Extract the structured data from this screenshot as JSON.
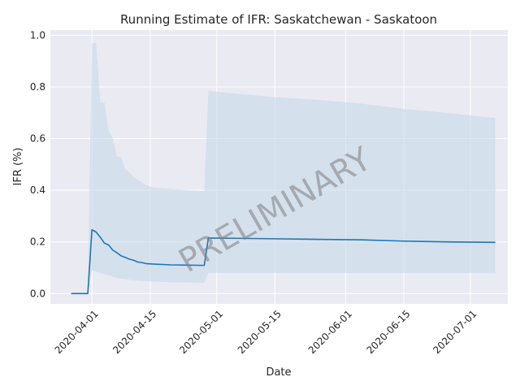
{
  "chart_data": {
    "type": "line",
    "title": "Running Estimate of IFR: Saskatchewan - Saskatoon",
    "xlabel": "Date",
    "ylabel": "IFR (%)",
    "watermark": "PRELIMINARY",
    "grid": true,
    "legend": "none",
    "xlim": [
      "2020-03-22",
      "2020-07-10"
    ],
    "ylim": [
      -0.04,
      1.02
    ],
    "x_ticks": [
      "2020-04-01",
      "2020-04-15",
      "2020-05-01",
      "2020-05-15",
      "2020-06-01",
      "2020-06-15",
      "2020-07-01"
    ],
    "y_ticks": [
      0.0,
      0.2,
      0.4,
      0.6,
      0.8,
      1.0
    ],
    "y_tick_labels": [
      "0.0",
      "0.2",
      "0.4",
      "0.6",
      "0.8",
      "1.0"
    ],
    "colors": {
      "line": "#1f77b4",
      "band": "#c6d9ea",
      "plot_bg": "#eaeaf2",
      "grid": "#ffffff"
    },
    "series": [
      {
        "points": [
          [
            "2020-03-27",
            0.0
          ],
          [
            "2020-03-28",
            0.0
          ],
          [
            "2020-03-29",
            0.0
          ],
          [
            "2020-03-30",
            0.0
          ],
          [
            "2020-03-31",
            0.0
          ],
          [
            "2020-04-01",
            0.247
          ],
          [
            "2020-04-02",
            0.238
          ],
          [
            "2020-04-03",
            0.218
          ],
          [
            "2020-04-04",
            0.195
          ],
          [
            "2020-04-05",
            0.188
          ],
          [
            "2020-04-06",
            0.168
          ],
          [
            "2020-04-07",
            0.158
          ],
          [
            "2020-04-08",
            0.146
          ],
          [
            "2020-04-09",
            0.14
          ],
          [
            "2020-04-10",
            0.133
          ],
          [
            "2020-04-11",
            0.129
          ],
          [
            "2020-04-12",
            0.122
          ],
          [
            "2020-04-13",
            0.12
          ],
          [
            "2020-04-14",
            0.116
          ],
          [
            "2020-04-16",
            0.114
          ],
          [
            "2020-04-20",
            0.111
          ],
          [
            "2020-04-24",
            0.11
          ],
          [
            "2020-04-28",
            0.109
          ],
          [
            "2020-04-29",
            0.215
          ],
          [
            "2020-05-05",
            0.214
          ],
          [
            "2020-05-15",
            0.212
          ],
          [
            "2020-05-25",
            0.21
          ],
          [
            "2020-06-05",
            0.208
          ],
          [
            "2020-06-15",
            0.203
          ],
          [
            "2020-06-25",
            0.2
          ],
          [
            "2020-07-07",
            0.198
          ]
        ]
      }
    ],
    "band": [
      [
        "2020-03-31",
        0.0,
        0.0
      ],
      [
        "2020-04-01",
        0.09,
        0.97
      ],
      [
        "2020-04-02",
        0.085,
        0.97
      ],
      [
        "2020-04-03",
        0.08,
        0.74
      ],
      [
        "2020-04-04",
        0.075,
        0.74
      ],
      [
        "2020-04-05",
        0.07,
        0.63
      ],
      [
        "2020-04-06",
        0.065,
        0.6
      ],
      [
        "2020-04-07",
        0.06,
        0.53
      ],
      [
        "2020-04-08",
        0.058,
        0.53
      ],
      [
        "2020-04-09",
        0.055,
        0.48
      ],
      [
        "2020-04-10",
        0.053,
        0.47
      ],
      [
        "2020-04-11",
        0.051,
        0.45
      ],
      [
        "2020-04-12",
        0.05,
        0.44
      ],
      [
        "2020-04-13",
        0.049,
        0.43
      ],
      [
        "2020-04-14",
        0.048,
        0.42
      ],
      [
        "2020-04-16",
        0.046,
        0.41
      ],
      [
        "2020-04-20",
        0.044,
        0.405
      ],
      [
        "2020-04-24",
        0.043,
        0.4
      ],
      [
        "2020-04-28",
        0.042,
        0.397
      ],
      [
        "2020-04-29",
        0.08,
        0.785
      ],
      [
        "2020-05-05",
        0.08,
        0.775
      ],
      [
        "2020-05-15",
        0.08,
        0.76
      ],
      [
        "2020-05-25",
        0.08,
        0.75
      ],
      [
        "2020-06-05",
        0.08,
        0.735
      ],
      [
        "2020-06-15",
        0.08,
        0.715
      ],
      [
        "2020-06-25",
        0.08,
        0.7
      ],
      [
        "2020-07-07",
        0.08,
        0.68
      ]
    ]
  }
}
